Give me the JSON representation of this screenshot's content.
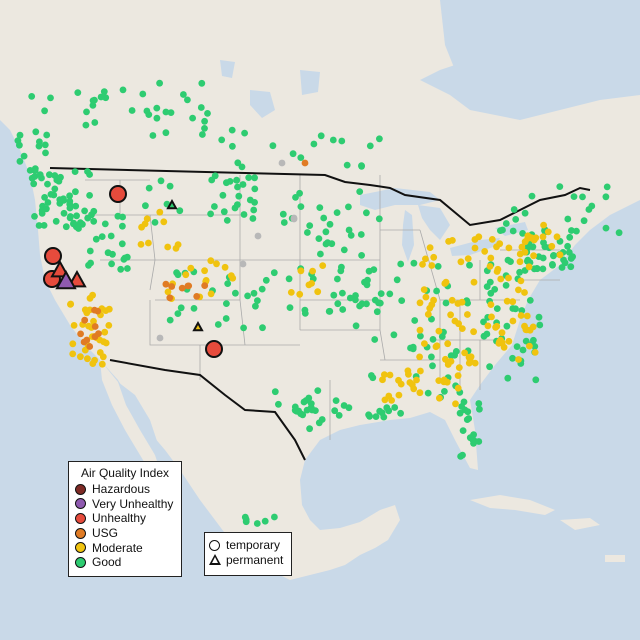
{
  "legend": {
    "title": "Air Quality Index",
    "categories": [
      {
        "label": "Hazardous",
        "color": "#7e2a25"
      },
      {
        "label": "Very Unhealthy",
        "color": "#8f5ab0"
      },
      {
        "label": "Unhealthy",
        "color": "#e64b3c"
      },
      {
        "label": "USG",
        "color": "#e07b24"
      },
      {
        "label": "Moderate",
        "color": "#f0c30f"
      },
      {
        "label": "Good",
        "color": "#2ecc71"
      }
    ]
  },
  "marker_legend": {
    "temporary_label": "temporary",
    "permanent_label": "permanent"
  },
  "colors": {
    "ocean": "#c9d9e8",
    "land": "#ece8e0",
    "good": "#2ecc71",
    "moderate": "#f0c30f",
    "usg": "#e07b24",
    "unhealthy": "#e64b3c",
    "very_unhealthy": "#8f5ab0",
    "no_data": "#b8b8b8"
  }
}
